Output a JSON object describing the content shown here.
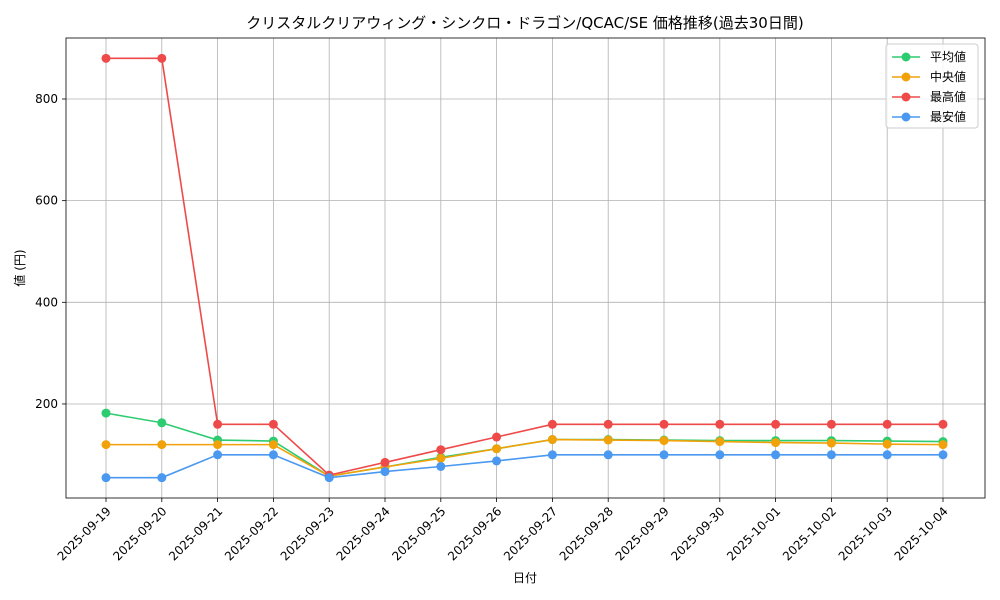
{
  "chart_data": {
    "type": "line",
    "title": "クリスタルクリアウィング・シンクロ・ドラゴン/QCAC/SE 価格推移(過去30日間)",
    "xlabel": "日付",
    "ylabel": "値 (円)",
    "ylim": [
      15,
      920
    ],
    "yticks": [
      200,
      400,
      600,
      800
    ],
    "grid": true,
    "legend_position": "top-right",
    "categories": [
      "2025-09-19",
      "2025-09-20",
      "2025-09-21",
      "2025-09-22",
      "2025-09-23",
      "2025-09-24",
      "2025-09-25",
      "2025-09-26",
      "2025-09-27",
      "2025-09-28",
      "2025-09-29",
      "2025-09-30",
      "2025-10-01",
      "2025-10-02",
      "2025-10-03",
      "2025-10-04"
    ],
    "series": [
      {
        "name": "平均値",
        "color": "#2ecc71",
        "values": [
          182,
          163,
          129,
          127,
          58,
          76,
          95,
          112,
          130,
          130,
          129,
          128,
          128,
          128,
          127,
          126
        ]
      },
      {
        "name": "中央値",
        "color": "#f1a20a",
        "values": [
          120,
          120,
          120,
          120,
          58,
          76,
          93,
          112,
          130,
          129,
          128,
          126,
          124,
          123,
          121,
          120
        ]
      },
      {
        "name": "最高値",
        "color": "#ef4a4a",
        "values": [
          880,
          880,
          160,
          160,
          60,
          85,
          110,
          135,
          160,
          160,
          160,
          160,
          160,
          160,
          160,
          160
        ]
      },
      {
        "name": "最安値",
        "color": "#4a98f0",
        "values": [
          55,
          55,
          100,
          100,
          55,
          67,
          77,
          88,
          100,
          100,
          100,
          100,
          100,
          100,
          100,
          100
        ]
      }
    ]
  }
}
